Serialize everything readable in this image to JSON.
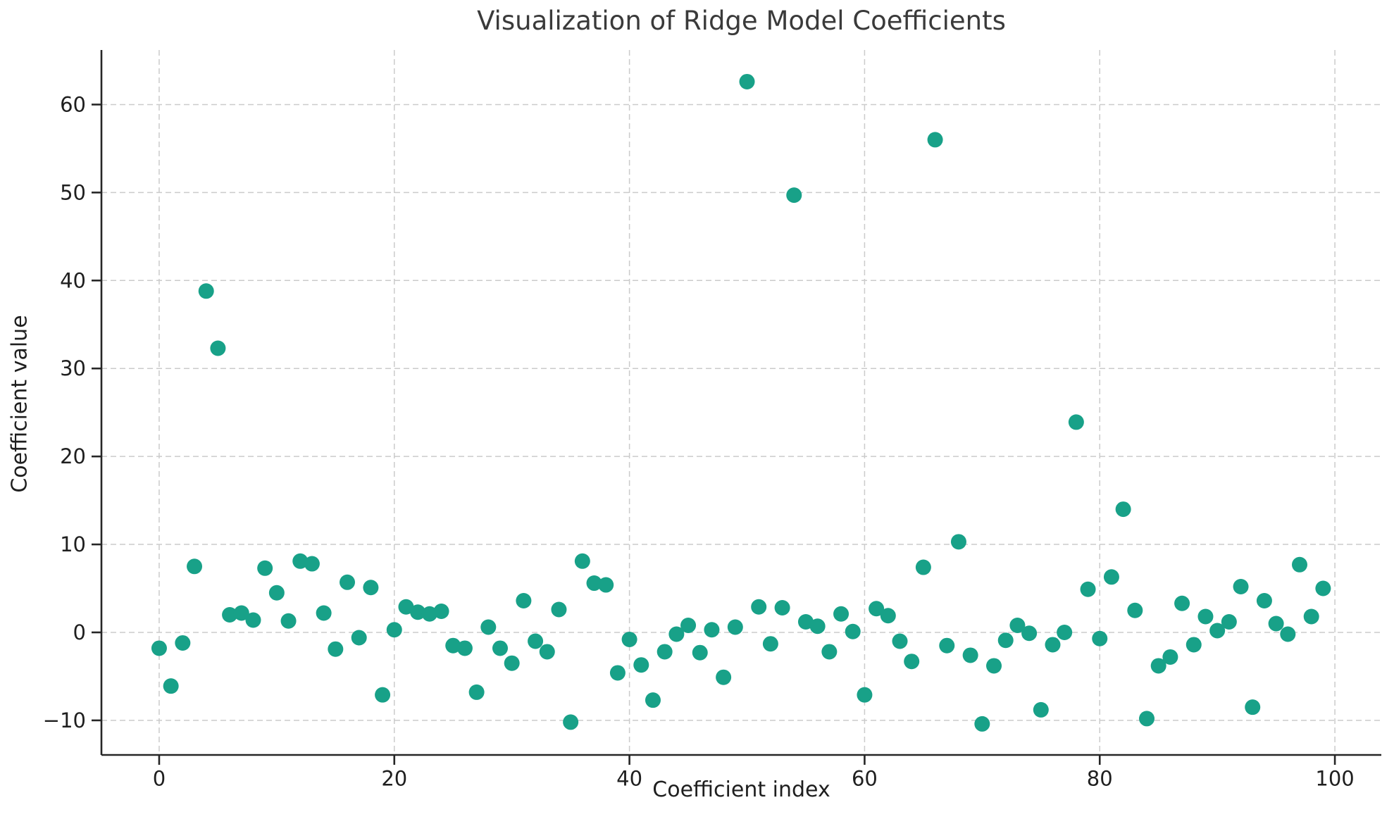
{
  "chart_data": {
    "type": "scatter",
    "title": "Visualization of Ridge Model Coefficients",
    "xlabel": "Coefficient index",
    "ylabel": "Coefficient value",
    "x_ticks": [
      0,
      20,
      40,
      60,
      80,
      100
    ],
    "y_ticks": [
      -10,
      0,
      10,
      20,
      30,
      40,
      50,
      60
    ],
    "xlim": [
      -4.91,
      103.95
    ],
    "ylim": [
      -13.93,
      66.2
    ],
    "grid": true,
    "legend": "none",
    "marker_color": "#18a188",
    "points": [
      [
        0,
        -1.8
      ],
      [
        1,
        -6.1
      ],
      [
        2,
        -1.2
      ],
      [
        3,
        7.5
      ],
      [
        4,
        38.8
      ],
      [
        5,
        32.3
      ],
      [
        6,
        2.0
      ],
      [
        7,
        2.2
      ],
      [
        8,
        1.4
      ],
      [
        9,
        7.3
      ],
      [
        10,
        4.5
      ],
      [
        11,
        1.3
      ],
      [
        12,
        8.1
      ],
      [
        13,
        7.8
      ],
      [
        14,
        2.2
      ],
      [
        15,
        -1.9
      ],
      [
        16,
        5.7
      ],
      [
        17,
        -0.6
      ],
      [
        18,
        5.1
      ],
      [
        19,
        -7.1
      ],
      [
        20,
        0.3
      ],
      [
        21,
        2.9
      ],
      [
        22,
        2.3
      ],
      [
        23,
        2.1
      ],
      [
        24,
        2.4
      ],
      [
        25,
        -1.5
      ],
      [
        26,
        -1.8
      ],
      [
        27,
        -6.8
      ],
      [
        28,
        0.6
      ],
      [
        29,
        -1.8
      ],
      [
        30,
        -3.5
      ],
      [
        31,
        3.6
      ],
      [
        32,
        -1.0
      ],
      [
        33,
        -2.2
      ],
      [
        34,
        2.6
      ],
      [
        35,
        -10.2
      ],
      [
        36,
        8.1
      ],
      [
        37,
        5.6
      ],
      [
        38,
        5.4
      ],
      [
        39,
        -4.6
      ],
      [
        40,
        -0.8
      ],
      [
        41,
        -3.7
      ],
      [
        42,
        -7.7
      ],
      [
        43,
        -2.2
      ],
      [
        44,
        -0.2
      ],
      [
        45,
        0.8
      ],
      [
        46,
        -2.3
      ],
      [
        47,
        0.3
      ],
      [
        48,
        -5.1
      ],
      [
        49,
        0.6
      ],
      [
        50,
        62.6
      ],
      [
        51,
        2.9
      ],
      [
        52,
        -1.3
      ],
      [
        53,
        2.8
      ],
      [
        54,
        49.7
      ],
      [
        55,
        1.2
      ],
      [
        56,
        0.7
      ],
      [
        57,
        -2.2
      ],
      [
        58,
        2.1
      ],
      [
        59,
        0.1
      ],
      [
        60,
        -7.1
      ],
      [
        61,
        2.7
      ],
      [
        62,
        1.9
      ],
      [
        63,
        -1.0
      ],
      [
        64,
        -3.3
      ],
      [
        65,
        7.4
      ],
      [
        66,
        56.0
      ],
      [
        67,
        -1.5
      ],
      [
        68,
        10.3
      ],
      [
        69,
        -2.6
      ],
      [
        70,
        -10.4
      ],
      [
        71,
        -3.8
      ],
      [
        72,
        -0.9
      ],
      [
        73,
        0.8
      ],
      [
        74,
        -0.1
      ],
      [
        75,
        -8.8
      ],
      [
        76,
        -1.4
      ],
      [
        77,
        0.0
      ],
      [
        78,
        23.9
      ],
      [
        79,
        4.9
      ],
      [
        80,
        -0.7
      ],
      [
        81,
        6.3
      ],
      [
        82,
        14.0
      ],
      [
        83,
        2.5
      ],
      [
        84,
        -9.8
      ],
      [
        85,
        -3.8
      ],
      [
        86,
        -2.8
      ],
      [
        87,
        3.3
      ],
      [
        88,
        -1.4
      ],
      [
        89,
        1.8
      ],
      [
        90,
        0.2
      ],
      [
        91,
        1.2
      ],
      [
        92,
        5.2
      ],
      [
        93,
        -8.5
      ],
      [
        94,
        3.6
      ],
      [
        95,
        1.0
      ],
      [
        96,
        -0.2
      ],
      [
        97,
        7.7
      ],
      [
        98,
        1.8
      ],
      [
        99,
        5.0
      ]
    ]
  }
}
